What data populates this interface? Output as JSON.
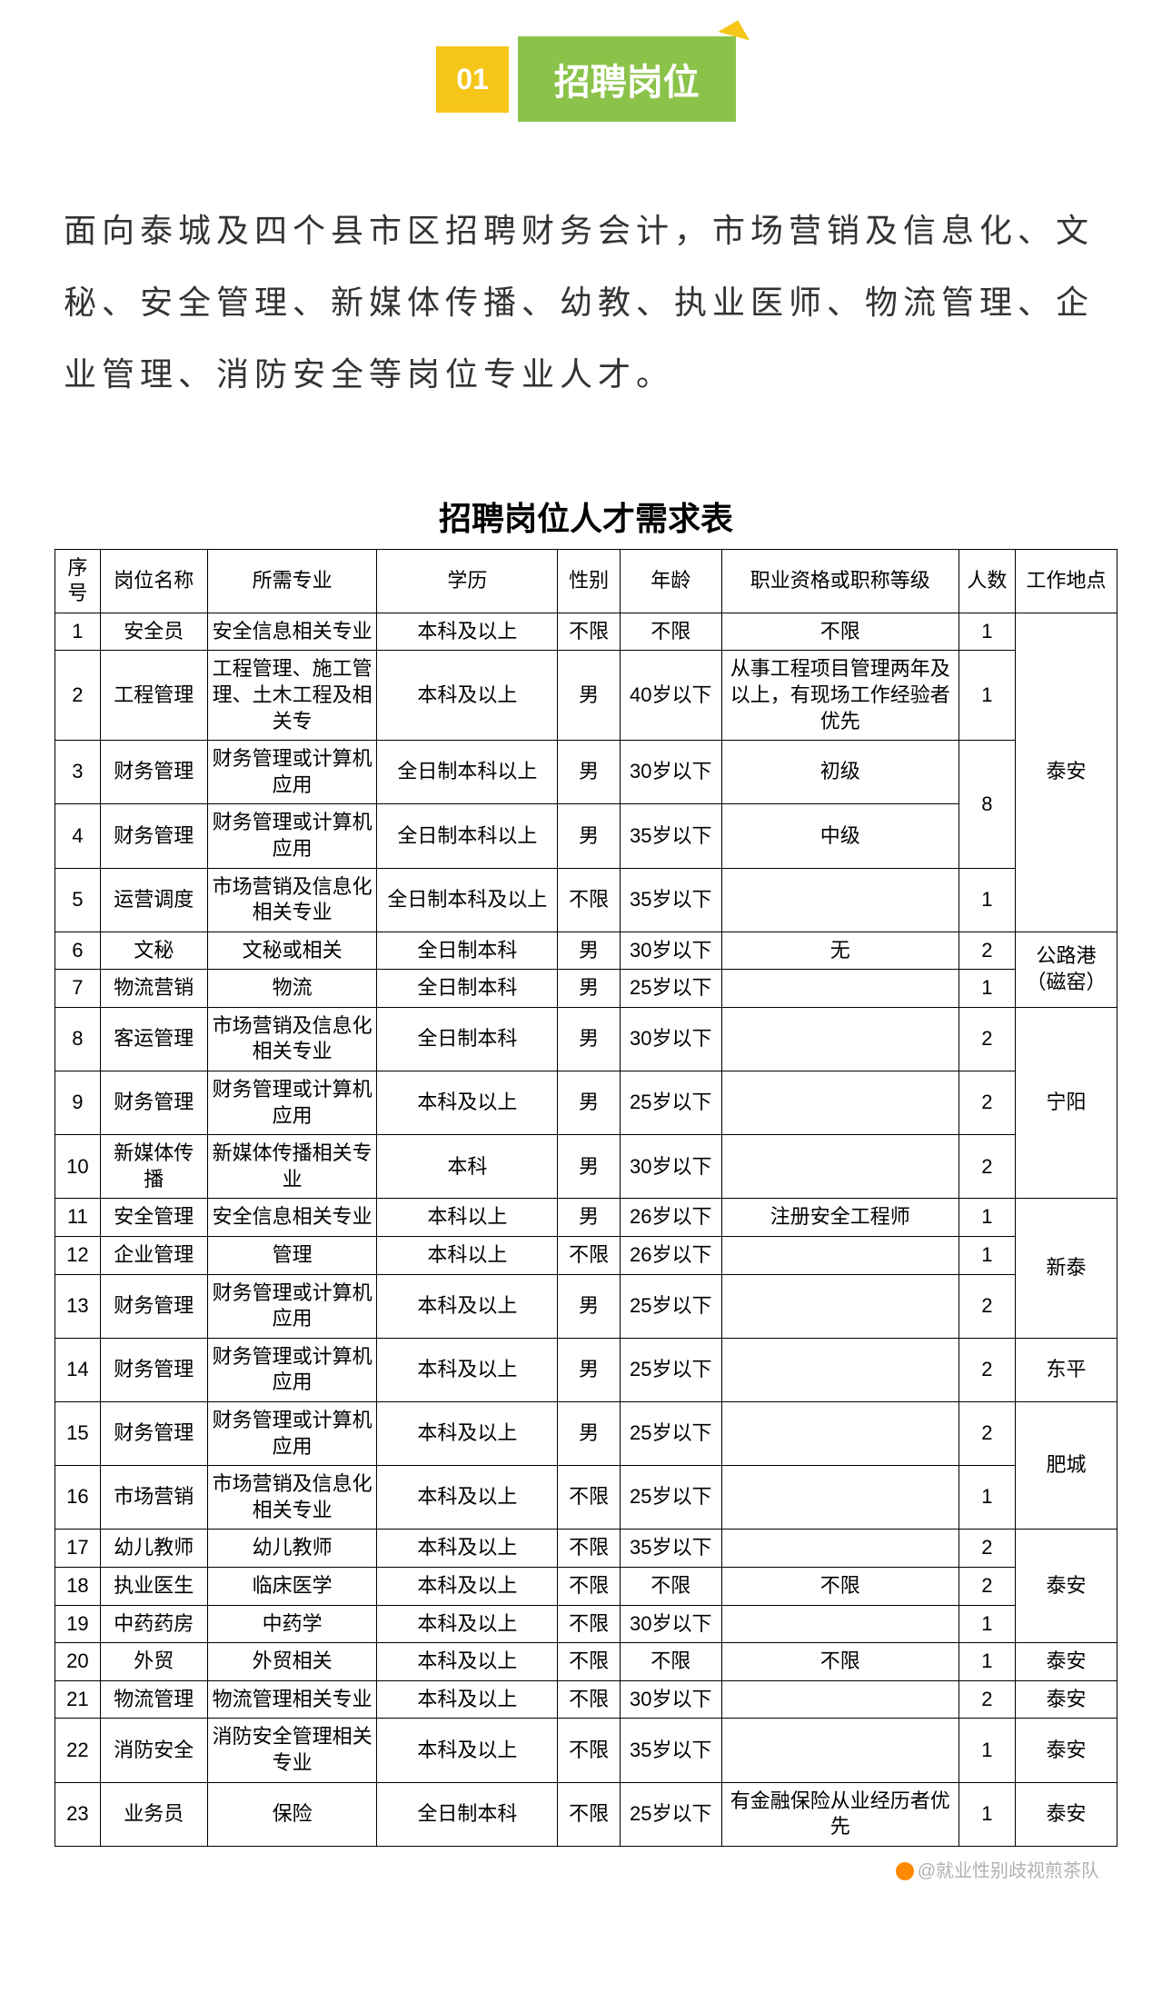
{
  "section": {
    "number": "01",
    "title": "招聘岗位"
  },
  "intro": "面向泰城及四个县市区招聘财务会计，市场营销及信息化、文秘、安全管理、新媒体传播、幼教、执业医师、物流管理、企业管理、消防安全等岗位专业人才。",
  "table": {
    "title": "招聘岗位人才需求表",
    "headers": {
      "seq": "序号",
      "position": "岗位名称",
      "major": "所需专业",
      "education": "学历",
      "gender": "性别",
      "age": "年龄",
      "qualification": "职业资格或职称等级",
      "count": "人数",
      "location": "工作地点"
    },
    "rows": [
      {
        "seq": "1",
        "position": "安全员",
        "major": "安全信息相关专业",
        "education": "本科及以上",
        "gender": "不限",
        "age": "不限",
        "qualification": "不限",
        "count": "1"
      },
      {
        "seq": "2",
        "position": "工程管理",
        "major": "工程管理、施工管理、土木工程及相关专",
        "education": "本科及以上",
        "gender": "男",
        "age": "40岁以下",
        "qualification": "从事工程项目管理两年及以上，有现场工作经验者优先",
        "count": "1"
      },
      {
        "seq": "3",
        "position": "财务管理",
        "major": "财务管理或计算机应用",
        "education": "全日制本科以上",
        "gender": "男",
        "age": "30岁以下",
        "qualification": "初级"
      },
      {
        "seq": "4",
        "position": "财务管理",
        "major": "财务管理或计算机应用",
        "education": "全日制本科以上",
        "gender": "男",
        "age": "35岁以下",
        "qualification": "中级"
      },
      {
        "seq": "5",
        "position": "运营调度",
        "major": "市场营销及信息化相关专业",
        "education": "全日制本科及以上",
        "gender": "不限",
        "age": "35岁以下",
        "qualification": "",
        "count": "1"
      },
      {
        "seq": "6",
        "position": "文秘",
        "major": "文秘或相关",
        "education": "全日制本科",
        "gender": "男",
        "age": "30岁以下",
        "qualification": "无",
        "count": "2"
      },
      {
        "seq": "7",
        "position": "物流营销",
        "major": "物流",
        "education": "全日制本科",
        "gender": "男",
        "age": "25岁以下",
        "qualification": "",
        "count": "1"
      },
      {
        "seq": "8",
        "position": "客运管理",
        "major": "市场营销及信息化相关专业",
        "education": "全日制本科",
        "gender": "男",
        "age": "30岁以下",
        "qualification": "",
        "count": "2"
      },
      {
        "seq": "9",
        "position": "财务管理",
        "major": "财务管理或计算机应用",
        "education": "本科及以上",
        "gender": "男",
        "age": "25岁以下",
        "qualification": "",
        "count": "2"
      },
      {
        "seq": "10",
        "position": "新媒体传播",
        "major": "新媒体传播相关专业",
        "education": "本科",
        "gender": "男",
        "age": "30岁以下",
        "qualification": "",
        "count": "2"
      },
      {
        "seq": "11",
        "position": "安全管理",
        "major": "安全信息相关专业",
        "education": "本科以上",
        "gender": "男",
        "age": "26岁以下",
        "qualification": "注册安全工程师",
        "count": "1"
      },
      {
        "seq": "12",
        "position": "企业管理",
        "major": "管理",
        "education": "本科以上",
        "gender": "不限",
        "age": "26岁以下",
        "qualification": "",
        "count": "1"
      },
      {
        "seq": "13",
        "position": "财务管理",
        "major": "财务管理或计算机应用",
        "education": "本科及以上",
        "gender": "男",
        "age": "25岁以下",
        "qualification": "",
        "count": "2"
      },
      {
        "seq": "14",
        "position": "财务管理",
        "major": "财务管理或计算机应用",
        "education": "本科及以上",
        "gender": "男",
        "age": "25岁以下",
        "qualification": "",
        "count": "2"
      },
      {
        "seq": "15",
        "position": "财务管理",
        "major": "财务管理或计算机应用",
        "education": "本科及以上",
        "gender": "男",
        "age": "25岁以下",
        "qualification": "",
        "count": "2"
      },
      {
        "seq": "16",
        "position": "市场营销",
        "major": "市场营销及信息化相关专业",
        "education": "本科及以上",
        "gender": "不限",
        "age": "25岁以下",
        "qualification": "",
        "count": "1"
      },
      {
        "seq": "17",
        "position": "幼儿教师",
        "major": "幼儿教师",
        "education": "本科及以上",
        "gender": "不限",
        "age": "35岁以下",
        "qualification": "",
        "count": "2"
      },
      {
        "seq": "18",
        "position": "执业医生",
        "major": "临床医学",
        "education": "本科及以上",
        "gender": "不限",
        "age": "不限",
        "qualification": "不限",
        "count": "2"
      },
      {
        "seq": "19",
        "position": "中药药房",
        "major": "中药学",
        "education": "本科及以上",
        "gender": "不限",
        "age": "30岁以下",
        "qualification": "",
        "count": "1"
      },
      {
        "seq": "20",
        "position": "外贸",
        "major": "外贸相关",
        "education": "本科及以上",
        "gender": "不限",
        "age": "不限",
        "qualification": "不限",
        "count": "1"
      },
      {
        "seq": "21",
        "position": "物流管理",
        "major": "物流管理相关专业",
        "education": "本科及以上",
        "gender": "不限",
        "age": "30岁以下",
        "qualification": "",
        "count": "2"
      },
      {
        "seq": "22",
        "position": "消防安全",
        "major": "消防安全管理相关专业",
        "education": "本科及以上",
        "gender": "不限",
        "age": "35岁以下",
        "qualification": "",
        "count": "1"
      },
      {
        "seq": "23",
        "position": "业务员",
        "major": "保险",
        "education": "全日制本科",
        "gender": "不限",
        "age": "25岁以下",
        "qualification": "有金融保险从业经历者优先",
        "count": "1"
      }
    ],
    "locations": {
      "loc1": "泰安",
      "loc2": "公路港（磁窑）",
      "loc3": "宁阳",
      "loc4": "新泰",
      "loc5": "东平",
      "loc6": "肥城",
      "loc7": "泰安",
      "loc8": "泰安",
      "loc9": "泰安",
      "loc10": "泰安",
      "loc11": "泰安"
    },
    "merged_count_34": "8"
  },
  "watermark": "@就业性别歧视煎茶队"
}
